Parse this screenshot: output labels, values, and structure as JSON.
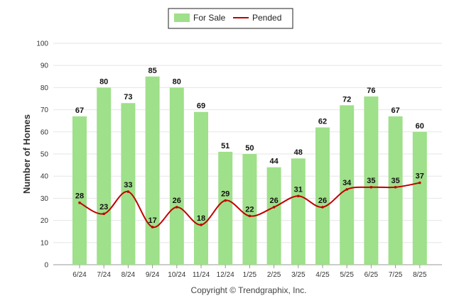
{
  "chart_data": {
    "type": "bar",
    "categories": [
      "6/24",
      "7/24",
      "8/24",
      "9/24",
      "10/24",
      "11/24",
      "12/24",
      "1/25",
      "2/25",
      "3/25",
      "4/25",
      "5/25",
      "6/25",
      "7/25",
      "8/25"
    ],
    "series": [
      {
        "name": "For Sale",
        "type": "bar",
        "color": "#9fe08a",
        "values": [
          67,
          80,
          73,
          85,
          80,
          69,
          51,
          50,
          44,
          48,
          62,
          72,
          76,
          67,
          60
        ]
      },
      {
        "name": "Pended",
        "type": "line",
        "color": "#c00000",
        "values": [
          28,
          23,
          33,
          17,
          26,
          18,
          29,
          22,
          26,
          31,
          26,
          34,
          35,
          35,
          37
        ]
      }
    ],
    "ylabel": "Number of Homes",
    "ylim": [
      0,
      100
    ],
    "yticks": [
      0,
      10,
      20,
      30,
      40,
      50,
      60,
      70,
      80,
      90,
      100
    ],
    "grid": true,
    "legend_position": "top-center"
  },
  "footer": {
    "copyright": "Copyright © Trendgraphix, Inc."
  }
}
